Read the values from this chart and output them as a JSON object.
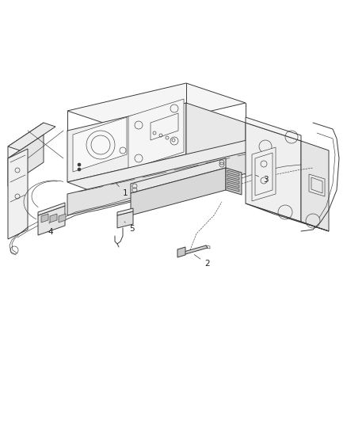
{
  "background_color": "#ffffff",
  "line_color": "#3a3a3a",
  "lw_main": 0.7,
  "lw_thin": 0.45,
  "figsize": [
    4.38,
    5.33
  ],
  "dpi": 100,
  "label_color": "#222222",
  "label_fontsize": 7.5
}
